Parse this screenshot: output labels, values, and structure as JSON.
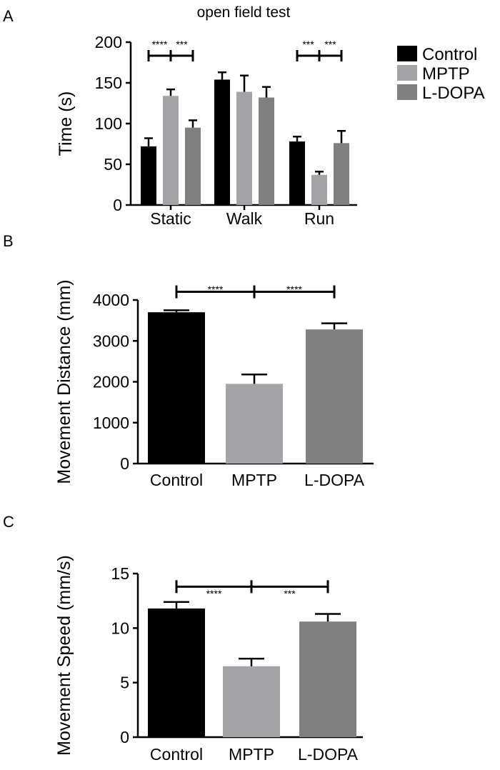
{
  "chart_data": [
    {
      "panel": "A",
      "type": "bar",
      "title": "open field test",
      "xlabel": "",
      "ylabel": "Time (s)",
      "ylim": [
        0,
        200
      ],
      "yticks": [
        0,
        50,
        100,
        150,
        200
      ],
      "categories": [
        "Static",
        "Walk",
        "Run"
      ],
      "series": [
        {
          "name": "Control",
          "values": [
            72,
            154,
            78
          ],
          "errors": [
            10,
            9,
            6
          ],
          "color": "#000000"
        },
        {
          "name": "MPTP",
          "values": [
            134,
            139,
            37
          ],
          "errors": [
            8,
            20,
            4
          ],
          "color": "#a4a4a8"
        },
        {
          "name": "L-DOPA",
          "values": [
            95,
            132,
            76
          ],
          "errors": [
            9,
            13,
            15
          ],
          "color": "#808080"
        }
      ],
      "legend": {
        "position": "top-right",
        "entries": [
          "Control",
          "MPTP",
          "L-DOPA"
        ]
      },
      "significance": [
        {
          "category": "Static",
          "left": "****",
          "right": "***"
        },
        {
          "category": "Run",
          "left": "***",
          "right": "***"
        }
      ]
    },
    {
      "panel": "B",
      "type": "bar",
      "title": "",
      "xlabel": "",
      "ylabel": "Movement Distance (mm)",
      "ylim": [
        0,
        4000
      ],
      "yticks": [
        0,
        1000,
        2000,
        3000,
        4000
      ],
      "categories": [
        "Control",
        "MPTP",
        "L-DOPA"
      ],
      "values": [
        3700,
        1950,
        3280
      ],
      "errors": [
        50,
        230,
        150
      ],
      "colors": [
        "#000000",
        "#a4a4a8",
        "#808080"
      ],
      "significance": {
        "left": "****",
        "right": "****",
        "level": 4200
      }
    },
    {
      "panel": "C",
      "type": "bar",
      "title": "",
      "xlabel": "",
      "ylabel": "Movement Speed (mm/s)",
      "ylim": [
        0,
        15
      ],
      "yticks": [
        0,
        5,
        10,
        15
      ],
      "categories": [
        "Control",
        "MPTP",
        "L-DOPA"
      ],
      "values": [
        11.8,
        6.5,
        10.6
      ],
      "errors": [
        0.6,
        0.7,
        0.7
      ],
      "colors": [
        "#000000",
        "#a4a4a8",
        "#808080"
      ],
      "significance": {
        "left": "****",
        "right": "***",
        "level": 13.8
      }
    }
  ]
}
